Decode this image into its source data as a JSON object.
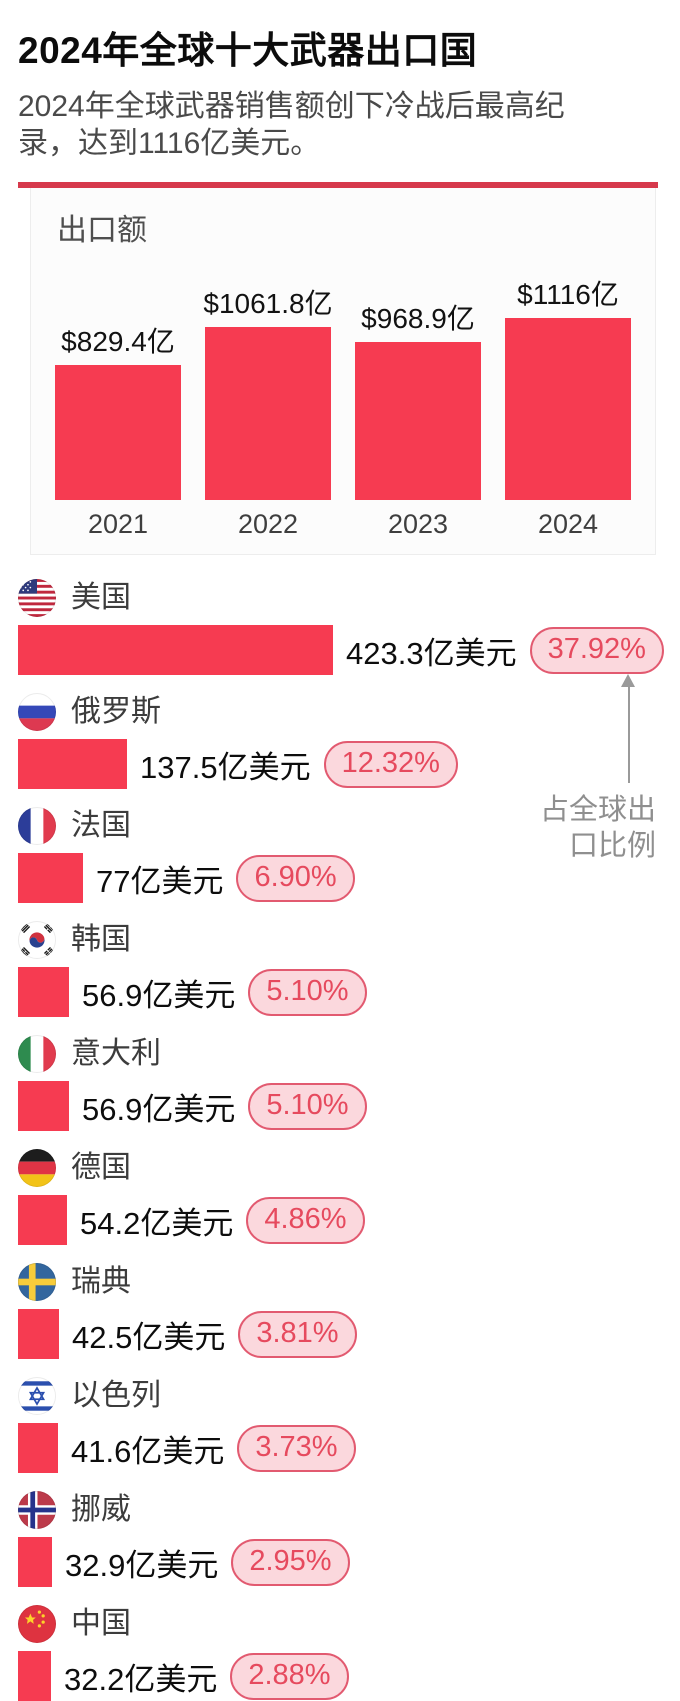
{
  "page": {
    "title": "2024年全球十大武器出口国",
    "subtitle": "2024年全球武器销售额创下冷战后最高纪录，达到1116亿美元。"
  },
  "chart_data": [
    {
      "type": "bar",
      "title": "出口额",
      "categories": [
        "2021",
        "2022",
        "2023",
        "2024"
      ],
      "values": [
        829.4,
        1061.8,
        968.9,
        1116
      ],
      "value_labels": [
        "$829.4亿",
        "$1061.8亿",
        "$968.9亿",
        "$1116亿"
      ],
      "xlabel": "",
      "ylabel": "出口额",
      "ylim": [
        0,
        1116
      ],
      "grid": false,
      "unit": "亿美元"
    },
    {
      "type": "bar",
      "orientation": "horizontal",
      "title": "2024年全球十大武器出口国",
      "categories": [
        "美国",
        "俄罗斯",
        "法国",
        "韩国",
        "意大利",
        "德国",
        "瑞典",
        "以色列",
        "挪威",
        "中国"
      ],
      "series": [
        {
          "name": "出口额(亿美元)",
          "values": [
            423.3,
            137.5,
            77,
            56.9,
            56.9,
            54.2,
            42.5,
            41.6,
            32.9,
            32.2
          ]
        },
        {
          "name": "占全球出口比例(%)",
          "values": [
            37.92,
            12.32,
            6.9,
            5.1,
            5.1,
            4.86,
            3.81,
            3.73,
            2.95,
            2.88
          ]
        }
      ],
      "annotation": "占全球出口比例",
      "grid": false
    }
  ],
  "countries": {
    "annotation_lines": [
      "占全球出",
      "口比例"
    ],
    "items": [
      {
        "name": "美国",
        "flag": "us",
        "value": 423.3,
        "value_label": "423.3亿美元",
        "share_label": "37.92%"
      },
      {
        "name": "俄罗斯",
        "flag": "ru",
        "value": 137.5,
        "value_label": "137.5亿美元",
        "share_label": "12.32%"
      },
      {
        "name": "法国",
        "flag": "fr",
        "value": 77,
        "value_label": "77亿美元",
        "share_label": "6.90%"
      },
      {
        "name": "韩国",
        "flag": "kr",
        "value": 56.9,
        "value_label": "56.9亿美元",
        "share_label": "5.10%"
      },
      {
        "name": "意大利",
        "flag": "it",
        "value": 56.9,
        "value_label": "56.9亿美元",
        "share_label": "5.10%"
      },
      {
        "name": "德国",
        "flag": "de",
        "value": 54.2,
        "value_label": "54.2亿美元",
        "share_label": "4.86%"
      },
      {
        "name": "瑞典",
        "flag": "se",
        "value": 42.5,
        "value_label": "42.5亿美元",
        "share_label": "3.81%"
      },
      {
        "name": "以色列",
        "flag": "il",
        "value": 41.6,
        "value_label": "41.6亿美元",
        "share_label": "3.73%"
      },
      {
        "name": "挪威",
        "flag": "no",
        "value": 32.9,
        "value_label": "32.9亿美元",
        "share_label": "2.95%"
      },
      {
        "name": "中国",
        "flag": "cn",
        "value": 32.2,
        "value_label": "32.2亿美元",
        "share_label": "2.88%"
      }
    ]
  },
  "colors": {
    "bar_red": "#f63b51",
    "rule_red": "#d6394c",
    "badge_border": "#e25a70",
    "badge_bg": "#fbd8dd",
    "badge_text": "#e64a5e"
  }
}
